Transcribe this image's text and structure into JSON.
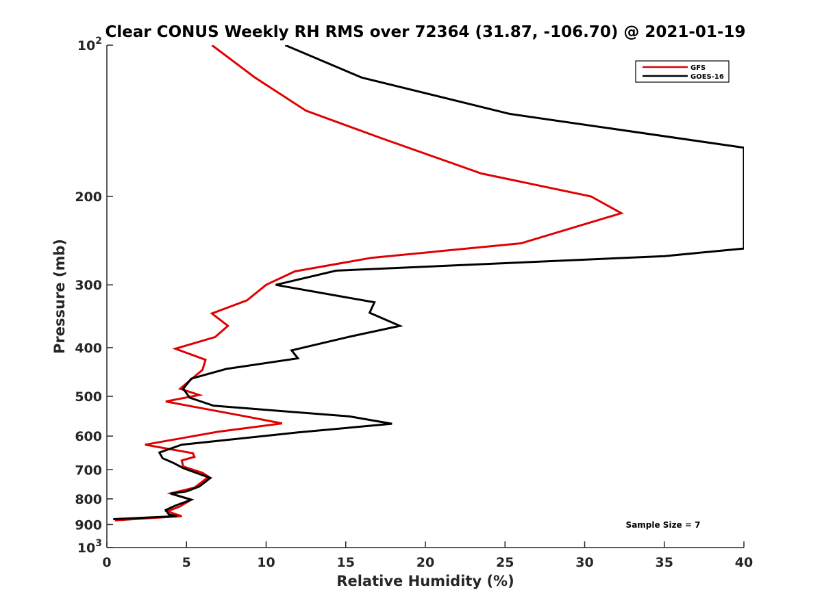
{
  "chart_data": {
    "type": "line",
    "title": "Clear CONUS Weekly RH RMS over 72364 (31.87, -106.70) @ 2021-01-19",
    "xlabel": "Relative Humidity (%)",
    "ylabel": "Pressure (mb)",
    "xlim": [
      0,
      40
    ],
    "ylim": [
      100,
      1000
    ],
    "y_scale": "log",
    "y_reversed": true,
    "grid": false,
    "legend_position": "top-right",
    "x_ticks": [
      0,
      5,
      10,
      15,
      20,
      25,
      30,
      35,
      40
    ],
    "x_tick_labels": [
      "0",
      "5",
      "10",
      "15",
      "20",
      "25",
      "30",
      "35",
      "40"
    ],
    "y_ticks": [
      100,
      200,
      300,
      400,
      500,
      600,
      700,
      800,
      900,
      1000
    ],
    "y_tick_labels": [
      {
        "base": "10",
        "exp": "2"
      },
      {
        "base": "200",
        "exp": ""
      },
      {
        "base": "300",
        "exp": ""
      },
      {
        "base": "400",
        "exp": ""
      },
      {
        "base": "500",
        "exp": ""
      },
      {
        "base": "600",
        "exp": ""
      },
      {
        "base": "700",
        "exp": ""
      },
      {
        "base": "800",
        "exp": ""
      },
      {
        "base": "900",
        "exp": ""
      },
      {
        "base": "10",
        "exp": "3"
      }
    ],
    "annotation": "Sample Size = 7",
    "series": [
      {
        "name": "GFS",
        "color": "#e00000",
        "x": [
          6.6,
          9.3,
          12.5,
          17.2,
          23.5,
          30.4,
          32.3,
          26.0,
          16.6,
          11.8,
          10.0,
          8.8,
          6.6,
          7.6,
          6.8,
          4.3,
          6.2,
          6.0,
          4.6,
          5.8,
          3.7,
          8.7,
          11.0,
          7.0,
          4.8,
          2.4,
          5.4,
          5.5,
          4.7,
          4.8,
          6.0,
          6.4,
          5.5,
          4.0,
          5.3,
          4.6,
          3.8,
          4.5,
          4.7,
          0.5
        ],
        "y": [
          100,
          116,
          135,
          153,
          180,
          200,
          216,
          248,
          265,
          282,
          300,
          322,
          342,
          362,
          381,
          402,
          423,
          443,
          483,
          497,
          512,
          548,
          566,
          588,
          605,
          624,
          649,
          660,
          671,
          690,
          710,
          723,
          760,
          780,
          803,
          828,
          847,
          862,
          866,
          883
        ]
      },
      {
        "name": "GOES-16",
        "color": "#000000",
        "x": [
          11.2,
          16.0,
          25.3,
          40.0,
          40.0,
          35.0,
          14.4,
          10.6,
          16.8,
          16.5,
          18.4,
          15.3,
          11.6,
          12.0,
          7.5,
          5.3,
          4.8,
          5.2,
          6.7,
          15.2,
          17.9,
          12.0,
          4.7,
          3.3,
          3.5,
          4.2,
          4.8,
          6.5,
          5.8,
          5.0,
          4.0,
          5.3,
          4.3,
          3.7,
          3.9,
          4.4,
          0.4
        ],
        "y": [
          100,
          116,
          137,
          160,
          254,
          263,
          281,
          300,
          325,
          341,
          362,
          380,
          405,
          420,
          441,
          461,
          483,
          503,
          522,
          548,
          567,
          590,
          624,
          647,
          664,
          679,
          695,
          727,
          756,
          773,
          781,
          803,
          825,
          842,
          860,
          866,
          878
        ]
      }
    ]
  }
}
